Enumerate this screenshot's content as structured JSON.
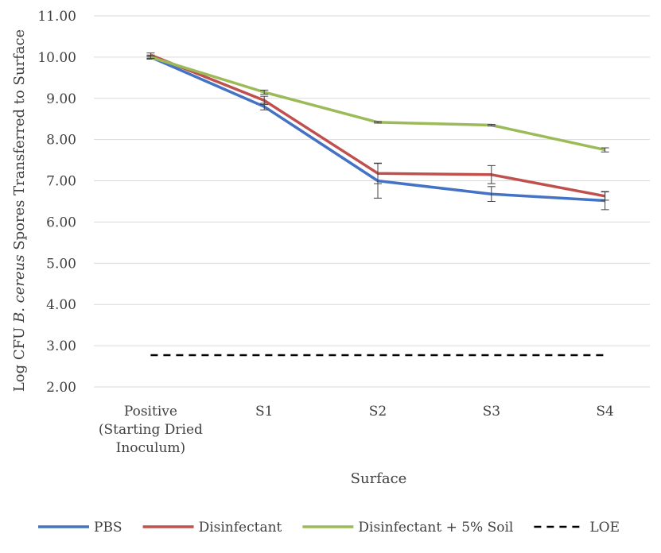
{
  "chart_data": {
    "type": "line",
    "categories": [
      [
        "Positive",
        "(Starting Dried",
        "Inoculum)"
      ],
      [
        "S1"
      ],
      [
        "S2"
      ],
      [
        "S3"
      ],
      [
        "S4"
      ]
    ],
    "xlabel": "Surface",
    "ylabel_parts": [
      "Log CFU ",
      "B. cereus",
      " Spores Transferred to Surface"
    ],
    "ylim": [
      2.0,
      11.0
    ],
    "yticks": [
      "2.00",
      "3.00",
      "4.00",
      "5.00",
      "6.00",
      "7.00",
      "8.00",
      "9.00",
      "10.00",
      "11.00"
    ],
    "grid": true,
    "legend_position": "bottom",
    "series": [
      {
        "name": "PBS",
        "color": "#4472C4",
        "style": "solid",
        "values": [
          10.0,
          8.8,
          7.0,
          6.68,
          6.52
        ],
        "errors": [
          0.05,
          0.08,
          0.42,
          0.18,
          0.22
        ]
      },
      {
        "name": "Disinfectant",
        "color": "#C0504D",
        "style": "solid",
        "values": [
          10.05,
          8.95,
          7.18,
          7.15,
          6.63
        ],
        "errors": [
          0.05,
          0.1,
          0.25,
          0.22,
          0.1
        ]
      },
      {
        "name": "Disinfectant + 5% Soil",
        "color": "#9BBB59",
        "style": "solid",
        "values": [
          10.0,
          9.15,
          8.42,
          8.35,
          7.75
        ],
        "errors": [
          0.03,
          0.05,
          0.02,
          0.02,
          0.05
        ]
      },
      {
        "name": "LOE",
        "color": "#000000",
        "style": "dashed",
        "values": [
          2.77,
          2.77,
          2.77,
          2.77,
          2.77
        ],
        "errors": null
      }
    ]
  }
}
